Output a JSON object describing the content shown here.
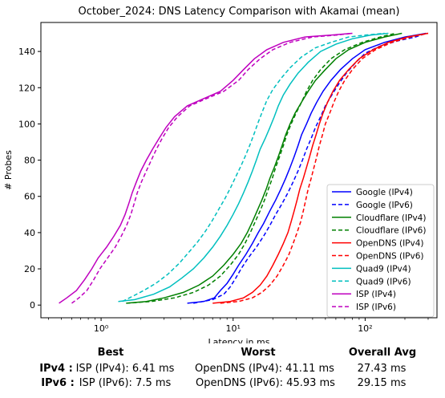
{
  "chart_data": {
    "type": "line",
    "title": "October_2024: DNS Latency Comparison with Akamai (mean)",
    "xlabel": "Latency in ms",
    "ylabel": "# Probes",
    "x_scale": "log",
    "xlim": [
      0.35,
      350
    ],
    "ylim": [
      -7,
      156
    ],
    "x_ticks": [
      1,
      10,
      100
    ],
    "x_tick_labels": [
      "10⁰",
      "10¹",
      "10²"
    ],
    "y_ticks": [
      0,
      20,
      40,
      60,
      80,
      100,
      120,
      140
    ],
    "legend_position": "lower-right",
    "series": [
      {
        "name": "Google (IPv4)",
        "color": "#0000ff",
        "dash": "solid",
        "points": [
          [
            4.5,
            1
          ],
          [
            6,
            2
          ],
          [
            7.2,
            4
          ],
          [
            8,
            8
          ],
          [
            9,
            12
          ],
          [
            10,
            17
          ],
          [
            11,
            22
          ],
          [
            12.5,
            28
          ],
          [
            14,
            34
          ],
          [
            15.5,
            40
          ],
          [
            17,
            45
          ],
          [
            19,
            52
          ],
          [
            21,
            58
          ],
          [
            23,
            64
          ],
          [
            25,
            70
          ],
          [
            27,
            76
          ],
          [
            29,
            82
          ],
          [
            31,
            88
          ],
          [
            33,
            94
          ],
          [
            36,
            100
          ],
          [
            39,
            106
          ],
          [
            43,
            112
          ],
          [
            48,
            118
          ],
          [
            55,
            124
          ],
          [
            65,
            130
          ],
          [
            80,
            136
          ],
          [
            100,
            141
          ],
          [
            140,
            145
          ],
          [
            200,
            148
          ],
          [
            290,
            150
          ]
        ]
      },
      {
        "name": "Google (IPv6)",
        "color": "#0000ff",
        "dash": "dashed",
        "points": [
          [
            5,
            1
          ],
          [
            7,
            3
          ],
          [
            8.5,
            6
          ],
          [
            9.5,
            10
          ],
          [
            10.5,
            15
          ],
          [
            11.5,
            20
          ],
          [
            13,
            26
          ],
          [
            15,
            32
          ],
          [
            17,
            38
          ],
          [
            19,
            44
          ],
          [
            21,
            50
          ],
          [
            23.5,
            56
          ],
          [
            26,
            62
          ],
          [
            28.5,
            68
          ],
          [
            31,
            74
          ],
          [
            33.5,
            80
          ],
          [
            36,
            86
          ],
          [
            39,
            92
          ],
          [
            42,
            98
          ],
          [
            46,
            104
          ],
          [
            50,
            110
          ],
          [
            56,
            116
          ],
          [
            63,
            122
          ],
          [
            72,
            128
          ],
          [
            85,
            134
          ],
          [
            100,
            139
          ],
          [
            130,
            143
          ],
          [
            180,
            146
          ],
          [
            240,
            148
          ],
          [
            290,
            150
          ]
        ]
      },
      {
        "name": "Cloudflare (IPv4)",
        "color": "#008000",
        "dash": "solid",
        "points": [
          [
            1.55,
            1
          ],
          [
            2.2,
            2
          ],
          [
            3,
            4
          ],
          [
            4.2,
            7
          ],
          [
            5.5,
            11
          ],
          [
            7,
            16
          ],
          [
            8.5,
            22
          ],
          [
            10,
            28
          ],
          [
            11.5,
            34
          ],
          [
            12.8,
            40
          ],
          [
            14,
            46
          ],
          [
            15.2,
            52
          ],
          [
            16.5,
            58
          ],
          [
            17.8,
            64
          ],
          [
            19,
            70
          ],
          [
            20.5,
            76
          ],
          [
            22,
            82
          ],
          [
            23.5,
            88
          ],
          [
            25,
            94
          ],
          [
            27,
            100
          ],
          [
            29.5,
            106
          ],
          [
            33,
            112
          ],
          [
            37,
            118
          ],
          [
            42,
            124
          ],
          [
            50,
            130
          ],
          [
            60,
            136
          ],
          [
            75,
            141
          ],
          [
            100,
            145
          ],
          [
            140,
            148
          ],
          [
            190,
            150
          ]
        ]
      },
      {
        "name": "Cloudflare (IPv6)",
        "color": "#008000",
        "dash": "dashed",
        "points": [
          [
            1.55,
            1
          ],
          [
            2.4,
            2
          ],
          [
            3.6,
            4
          ],
          [
            5,
            7
          ],
          [
            6.5,
            11
          ],
          [
            8,
            16
          ],
          [
            9.5,
            22
          ],
          [
            11,
            28
          ],
          [
            12.3,
            34
          ],
          [
            13.5,
            40
          ],
          [
            14.7,
            46
          ],
          [
            16,
            52
          ],
          [
            17.3,
            58
          ],
          [
            18.5,
            64
          ],
          [
            19.8,
            70
          ],
          [
            21,
            76
          ],
          [
            22.5,
            82
          ],
          [
            24,
            88
          ],
          [
            25.5,
            94
          ],
          [
            27.5,
            100
          ],
          [
            30,
            106
          ],
          [
            33,
            112
          ],
          [
            36,
            118
          ],
          [
            40,
            124
          ],
          [
            46,
            130
          ],
          [
            55,
            136
          ],
          [
            70,
            141
          ],
          [
            95,
            145
          ],
          [
            130,
            148
          ],
          [
            170,
            150
          ]
        ]
      },
      {
        "name": "OpenDNS (IPv4)",
        "color": "#ff0000",
        "dash": "solid",
        "points": [
          [
            7,
            1
          ],
          [
            9.5,
            2
          ],
          [
            12,
            4
          ],
          [
            14,
            7
          ],
          [
            16,
            11
          ],
          [
            18,
            16
          ],
          [
            20,
            22
          ],
          [
            22,
            28
          ],
          [
            24,
            34
          ],
          [
            26,
            40
          ],
          [
            27.5,
            46
          ],
          [
            29,
            52
          ],
          [
            30.5,
            58
          ],
          [
            32,
            64
          ],
          [
            34,
            70
          ],
          [
            36,
            76
          ],
          [
            38,
            82
          ],
          [
            40,
            88
          ],
          [
            42.5,
            94
          ],
          [
            45,
            100
          ],
          [
            48,
            106
          ],
          [
            52,
            112
          ],
          [
            57,
            118
          ],
          [
            64,
            124
          ],
          [
            75,
            130
          ],
          [
            90,
            136
          ],
          [
            115,
            141
          ],
          [
            150,
            145
          ],
          [
            210,
            148
          ],
          [
            300,
            150
          ]
        ]
      },
      {
        "name": "OpenDNS (IPv6)",
        "color": "#ff0000",
        "dash": "dashed",
        "points": [
          [
            8,
            1
          ],
          [
            11,
            2
          ],
          [
            14,
            4
          ],
          [
            16.5,
            7
          ],
          [
            19,
            11
          ],
          [
            21.5,
            16
          ],
          [
            24,
            22
          ],
          [
            26.5,
            28
          ],
          [
            28.5,
            34
          ],
          [
            30.5,
            40
          ],
          [
            32.5,
            46
          ],
          [
            34,
            52
          ],
          [
            35.5,
            58
          ],
          [
            37,
            64
          ],
          [
            39,
            70
          ],
          [
            41,
            76
          ],
          [
            43,
            82
          ],
          [
            45,
            88
          ],
          [
            47.5,
            94
          ],
          [
            50,
            100
          ],
          [
            54,
            106
          ],
          [
            58,
            112
          ],
          [
            63,
            118
          ],
          [
            70,
            124
          ],
          [
            80,
            130
          ],
          [
            95,
            136
          ],
          [
            120,
            141
          ],
          [
            160,
            145
          ],
          [
            220,
            148
          ],
          [
            300,
            150
          ]
        ]
      },
      {
        "name": "Quad9 (IPv4)",
        "color": "#00bfbf",
        "dash": "solid",
        "points": [
          [
            1.35,
            2
          ],
          [
            1.8,
            3
          ],
          [
            2.5,
            6
          ],
          [
            3.3,
            10
          ],
          [
            4.1,
            15
          ],
          [
            5,
            20
          ],
          [
            6,
            26
          ],
          [
            7,
            32
          ],
          [
            8,
            38
          ],
          [
            9,
            44
          ],
          [
            10,
            50
          ],
          [
            11,
            56
          ],
          [
            12,
            62
          ],
          [
            13,
            68
          ],
          [
            14,
            74
          ],
          [
            15,
            80
          ],
          [
            16,
            86
          ],
          [
            17.5,
            92
          ],
          [
            19,
            98
          ],
          [
            20.5,
            104
          ],
          [
            22,
            110
          ],
          [
            24,
            116
          ],
          [
            27,
            122
          ],
          [
            31,
            128
          ],
          [
            37,
            134
          ],
          [
            46,
            140
          ],
          [
            60,
            144
          ],
          [
            80,
            147
          ],
          [
            110,
            149
          ],
          [
            150,
            150
          ]
        ]
      },
      {
        "name": "Quad9 (IPv6)",
        "color": "#00bfbf",
        "dash": "dashed",
        "points": [
          [
            1.45,
            2
          ],
          [
            1.75,
            5
          ],
          [
            2.1,
            8
          ],
          [
            2.6,
            12
          ],
          [
            3.2,
            17
          ],
          [
            3.9,
            23
          ],
          [
            4.6,
            29
          ],
          [
            5.4,
            35
          ],
          [
            6.2,
            41
          ],
          [
            7,
            47
          ],
          [
            7.8,
            53
          ],
          [
            8.7,
            59
          ],
          [
            9.6,
            65
          ],
          [
            10.5,
            71
          ],
          [
            11.5,
            77
          ],
          [
            12.5,
            83
          ],
          [
            13.5,
            89
          ],
          [
            14.5,
            95
          ],
          [
            15.5,
            101
          ],
          [
            16.7,
            107
          ],
          [
            18,
            113
          ],
          [
            20,
            119
          ],
          [
            23,
            125
          ],
          [
            27,
            131
          ],
          [
            33,
            137
          ],
          [
            42,
            142
          ],
          [
            55,
            145
          ],
          [
            75,
            148
          ],
          [
            100,
            149
          ],
          [
            140,
            150
          ]
        ]
      },
      {
        "name": "ISP (IPv4)",
        "color": "#bf00bf",
        "dash": "solid",
        "points": [
          [
            0.48,
            1
          ],
          [
            0.55,
            4
          ],
          [
            0.65,
            8
          ],
          [
            0.75,
            14
          ],
          [
            0.85,
            20
          ],
          [
            0.95,
            26
          ],
          [
            1.1,
            32
          ],
          [
            1.25,
            38
          ],
          [
            1.4,
            44
          ],
          [
            1.52,
            50
          ],
          [
            1.62,
            56
          ],
          [
            1.72,
            62
          ],
          [
            1.85,
            68
          ],
          [
            2,
            74
          ],
          [
            2.2,
            80
          ],
          [
            2.45,
            86
          ],
          [
            2.75,
            92
          ],
          [
            3.1,
            98
          ],
          [
            3.6,
            104
          ],
          [
            4.5,
            110
          ],
          [
            6,
            114
          ],
          [
            8,
            118
          ],
          [
            10,
            124
          ],
          [
            12,
            130
          ],
          [
            14.5,
            136
          ],
          [
            18,
            141
          ],
          [
            24,
            145
          ],
          [
            35,
            148
          ],
          [
            55,
            149
          ],
          [
            80,
            150
          ]
        ]
      },
      {
        "name": "ISP (IPv6)",
        "color": "#bf00bf",
        "dash": "dashed",
        "points": [
          [
            0.6,
            1
          ],
          [
            0.68,
            4
          ],
          [
            0.78,
            8
          ],
          [
            0.88,
            14
          ],
          [
            0.98,
            20
          ],
          [
            1.12,
            26
          ],
          [
            1.28,
            32
          ],
          [
            1.42,
            38
          ],
          [
            1.56,
            44
          ],
          [
            1.68,
            50
          ],
          [
            1.78,
            56
          ],
          [
            1.88,
            62
          ],
          [
            2.02,
            68
          ],
          [
            2.2,
            74
          ],
          [
            2.4,
            80
          ],
          [
            2.62,
            86
          ],
          [
            2.9,
            92
          ],
          [
            3.25,
            98
          ],
          [
            3.8,
            104
          ],
          [
            4.7,
            110
          ],
          [
            6.3,
            114
          ],
          [
            8.5,
            118
          ],
          [
            11,
            124
          ],
          [
            13,
            130
          ],
          [
            16,
            136
          ],
          [
            20,
            141
          ],
          [
            27,
            145
          ],
          [
            40,
            148
          ],
          [
            60,
            149
          ],
          [
            80,
            150
          ]
        ]
      }
    ]
  },
  "summary": {
    "headers": {
      "best": "Best",
      "worst": "Worst",
      "overall": "Overall Avg"
    },
    "rows": [
      {
        "label": "IPv4 :",
        "best": "ISP (IPv4): 6.41 ms",
        "worst": "OpenDNS (IPv4): 41.11 ms",
        "overall": "27.43 ms"
      },
      {
        "label": "IPv6 :",
        "best": "ISP (IPv6): 7.5 ms",
        "worst": "OpenDNS (IPv6): 45.93 ms",
        "overall": "29.15 ms"
      }
    ]
  }
}
